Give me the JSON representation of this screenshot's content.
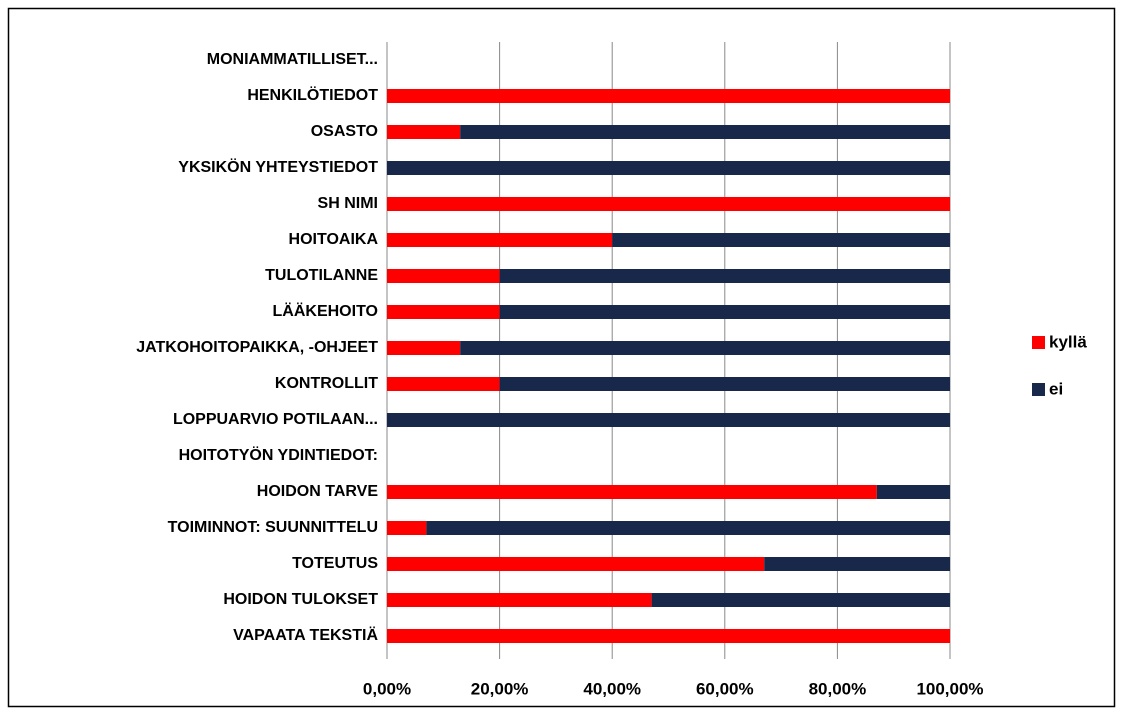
{
  "chart_data": {
    "type": "stacked-bar-horizontal",
    "categories": [
      "MONIAMMATILLISET...",
      "HENKILÖTIEDOT",
      "OSASTO",
      "YKSIKÖN YHTEYSTIEDOT",
      "SH NIMI",
      "HOITOAIKA",
      "TULOTILANNE",
      "LÄÄKEHOITO",
      "JATKOHOITOPAIKKA, -OHJEET",
      "KONTROLLIT",
      "LOPPUARVIO POTILAAN...",
      "HOITOTYÖN YDINTIEDOT:",
      "HOIDON TARVE",
      "TOIMINNOT: SUUNNITTELU",
      "TOTEUTUS",
      "HOIDON TULOKSET",
      "VAPAATA TEKSTIÄ"
    ],
    "series": [
      {
        "name": "kyllä",
        "color": "#ff0000",
        "values": [
          null,
          100,
          13,
          0,
          100,
          40,
          20,
          20,
          13,
          20,
          0,
          null,
          87,
          7,
          67,
          47,
          100
        ]
      },
      {
        "name": "ei",
        "color": "#17284a",
        "values": [
          null,
          0,
          87,
          100,
          0,
          60,
          80,
          80,
          87,
          80,
          100,
          null,
          13,
          93,
          33,
          53,
          0
        ]
      }
    ],
    "xlim": [
      0,
      100
    ],
    "xticks": [
      {
        "value": 0,
        "label": "0,00%"
      },
      {
        "value": 20,
        "label": "20,00%"
      },
      {
        "value": 40,
        "label": "40,00%"
      },
      {
        "value": 60,
        "label": "60,00%"
      },
      {
        "value": 80,
        "label": "80,00%"
      },
      {
        "value": 100,
        "label": "100,00%"
      }
    ],
    "grid": true,
    "legend": "right"
  }
}
